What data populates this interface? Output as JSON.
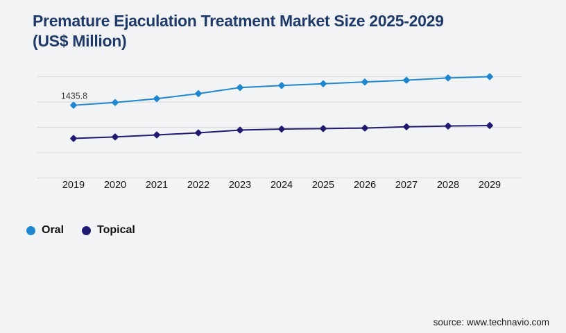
{
  "title": {
    "line1": "Premature Ejaculation Treatment Market Size 2025-2029",
    "line2": "(US$ Million)"
  },
  "source": "source: www.technavio.com",
  "colors": {
    "background": "#f2f3f5",
    "gridline": "#d7d7d7",
    "title": "#1f3a68",
    "axis_label": "#141414",
    "data_label": "#3c3c3c",
    "oral": "#1e87d0",
    "topical": "#201a70"
  },
  "legend": {
    "items": [
      {
        "label": "Oral",
        "color": "#1e87d0"
      },
      {
        "label": "Topical",
        "color": "#201a70"
      }
    ]
  },
  "chart_data": {
    "type": "line",
    "title": "Premature Ejaculation Treatment Market Size 2025-2029 (US$ Million)",
    "categories": [
      "2019",
      "2020",
      "2021",
      "2022",
      "2023",
      "2024",
      "2025",
      "2026",
      "2027",
      "2028",
      "2029"
    ],
    "series": [
      {
        "name": "Oral",
        "color": "#1e87d0",
        "marker": "diamond",
        "values": [
          1435.8,
          1490,
          1565,
          1665,
          1785,
          1825,
          1860,
          1895,
          1930,
          1975,
          2000
        ]
      },
      {
        "name": "Topical",
        "color": "#201a70",
        "marker": "diamond",
        "values": [
          780,
          810,
          850,
          890,
          945,
          965,
          975,
          985,
          1010,
          1025,
          1035
        ]
      }
    ],
    "data_labels": [
      {
        "series": "Oral",
        "index": 0,
        "text": "1435.8"
      }
    ],
    "ylim": [
      0,
      2000
    ],
    "gridline_step": 500,
    "grid": "horizontal-only",
    "y_axis_labels_visible": false,
    "legend_position": "bottom-left",
    "note": "values other than 1435.8 are estimated from gridlines"
  }
}
